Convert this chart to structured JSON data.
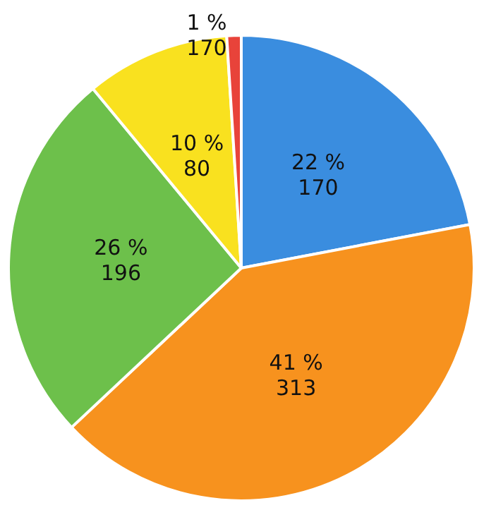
{
  "chart_data": {
    "type": "pie",
    "categories": [
      null,
      null,
      null,
      null,
      null
    ],
    "values": [
      22,
      41,
      26,
      10,
      1
    ],
    "colors": [
      "#3a8ddf",
      "#f7921e",
      "#6dc04b",
      "#f9e11f",
      "#e8433a"
    ],
    "value_labels": [
      "22 %\n170",
      "41 %\n313",
      "26 %\n196",
      "10 %\n80",
      "1 %\n170"
    ]
  }
}
